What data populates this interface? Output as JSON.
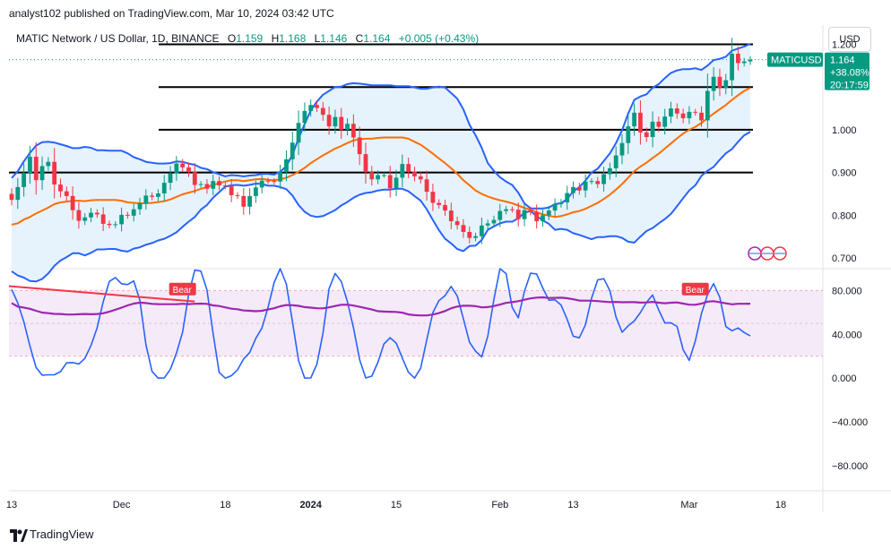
{
  "header": {
    "published": "analyst102 published on TradingView.com, Mar 10, 2024 03:42 UTC"
  },
  "legend": {
    "symbol": "MATIC Network / US Dollar, 1D, BINANCE",
    "o_label": "O",
    "o_value": "1.159",
    "h_label": "H",
    "h_value": "1.168",
    "l_label": "L",
    "l_value": "1.146",
    "c_label": "C",
    "c_value": "1.164",
    "change": "+0.005 (+0.43%)"
  },
  "currency": "USD",
  "price_label": {
    "symbol": "MATICUSD",
    "price": "1.164",
    "change_pct": "+38.08%",
    "countdown": "20:17:59"
  },
  "footer": {
    "brand": "TradingView"
  },
  "colors": {
    "up": "#089981",
    "down": "#f23645",
    "bb_band": "#2962ff",
    "bb_basis": "#ff6d00",
    "bb_fill": "#e3f2fd",
    "stoch_k": "#2962ff",
    "stoch_d": "#9c27b0",
    "stoch_fill": "#f3e5f5",
    "bear": "#f23645"
  },
  "chart_data": [
    {
      "type": "candlestick",
      "pane": "price",
      "y_ticks": [
        "1.200",
        "1.000",
        "0.900",
        "0.800",
        "0.700"
      ],
      "y_tick_values": [
        1.2,
        1.0,
        0.9,
        0.8,
        0.7
      ],
      "y_range": [
        0.675,
        1.245
      ],
      "x_ticks": [
        "13",
        "Dec",
        "18",
        "2024",
        "15",
        "Feb",
        "13",
        "Mar",
        "18"
      ],
      "x_tick_days": [
        0,
        18,
        35,
        49,
        63,
        80,
        92,
        111,
        126
      ],
      "start_date": "2023-11-13",
      "horizontal_levels": [
        1.2,
        1.1,
        1.0,
        0.9
      ],
      "current_price": 1.164,
      "closes": [
        0.836,
        0.866,
        0.899,
        0.937,
        0.882,
        0.915,
        0.925,
        0.872,
        0.856,
        0.845,
        0.812,
        0.787,
        0.795,
        0.806,
        0.802,
        0.78,
        0.777,
        0.779,
        0.801,
        0.799,
        0.814,
        0.828,
        0.846,
        0.843,
        0.851,
        0.876,
        0.898,
        0.921,
        0.912,
        0.901,
        0.871,
        0.873,
        0.862,
        0.88,
        0.87,
        0.868,
        0.847,
        0.845,
        0.82,
        0.845,
        0.865,
        0.881,
        0.88,
        0.879,
        0.901,
        0.931,
        0.97,
        1.016,
        1.044,
        1.058,
        1.051,
        1.035,
        1.008,
        1.03,
        1.0,
        1.014,
        0.982,
        0.943,
        0.901,
        0.884,
        0.894,
        0.894,
        0.863,
        0.888,
        0.92,
        0.902,
        0.891,
        0.884,
        0.855,
        0.829,
        0.824,
        0.811,
        0.786,
        0.777,
        0.761,
        0.747,
        0.751,
        0.776,
        0.781,
        0.789,
        0.81,
        0.814,
        0.813,
        0.791,
        0.812,
        0.808,
        0.786,
        0.8,
        0.811,
        0.826,
        0.83,
        0.852,
        0.866,
        0.858,
        0.879,
        0.88,
        0.873,
        0.896,
        0.91,
        0.94,
        0.969,
        1.008,
        1.04,
        0.994,
        0.983,
        1.019,
        1.007,
        1.031,
        1.05,
        1.038,
        1.027,
        1.042,
        1.04,
        1.022,
        1.091,
        1.124,
        1.098,
        1.116,
        1.178,
        1.156,
        1.16,
        1.164
      ],
      "sma20": [
        0.778,
        0.781,
        0.79,
        0.796,
        0.804,
        0.811,
        0.818,
        0.826,
        0.83,
        0.832,
        0.834,
        0.834,
        0.833,
        0.835,
        0.836,
        0.836,
        0.836,
        0.836,
        0.834,
        0.83,
        0.829,
        0.828,
        0.828,
        0.829,
        0.831,
        0.833,
        0.837,
        0.843,
        0.849,
        0.853,
        0.857,
        0.862,
        0.866,
        0.871,
        0.875,
        0.879,
        0.882,
        0.882,
        0.88,
        0.882,
        0.884,
        0.885,
        0.883,
        0.882,
        0.884,
        0.888,
        0.894,
        0.902,
        0.911,
        0.922,
        0.931,
        0.94,
        0.948,
        0.956,
        0.962,
        0.969,
        0.975,
        0.978,
        0.979,
        0.979,
        0.981,
        0.982,
        0.982,
        0.982,
        0.982,
        0.979,
        0.972,
        0.965,
        0.955,
        0.944,
        0.933,
        0.922,
        0.91,
        0.897,
        0.882,
        0.87,
        0.858,
        0.85,
        0.844,
        0.839,
        0.835,
        0.832,
        0.828,
        0.823,
        0.817,
        0.813,
        0.807,
        0.802,
        0.799,
        0.796,
        0.798,
        0.802,
        0.807,
        0.81,
        0.815,
        0.822,
        0.829,
        0.838,
        0.848,
        0.86,
        0.873,
        0.888,
        0.903,
        0.914,
        0.923,
        0.934,
        0.944,
        0.956,
        0.968,
        0.98,
        0.991,
        1.0,
        1.007,
        1.016,
        1.027,
        1.038,
        1.048,
        1.058,
        1.07,
        1.081,
        1.091,
        1.098
      ],
      "bb_upper": [
        0.887,
        0.903,
        0.926,
        0.946,
        0.963,
        0.971,
        0.972,
        0.97,
        0.966,
        0.962,
        0.957,
        0.957,
        0.96,
        0.958,
        0.952,
        0.952,
        0.951,
        0.951,
        0.951,
        0.945,
        0.936,
        0.931,
        0.925,
        0.923,
        0.921,
        0.921,
        0.922,
        0.926,
        0.925,
        0.921,
        0.918,
        0.911,
        0.908,
        0.901,
        0.896,
        0.891,
        0.894,
        0.893,
        0.891,
        0.893,
        0.894,
        0.897,
        0.897,
        0.895,
        0.902,
        0.915,
        0.942,
        0.98,
        1.014,
        1.045,
        1.066,
        1.082,
        1.091,
        1.1,
        1.101,
        1.107,
        1.109,
        1.108,
        1.106,
        1.104,
        1.104,
        1.104,
        1.104,
        1.102,
        1.102,
        1.102,
        1.099,
        1.096,
        1.096,
        1.099,
        1.101,
        1.099,
        1.086,
        1.073,
        1.048,
        1.012,
        0.987,
        0.958,
        0.922,
        0.904,
        0.889,
        0.879,
        0.871,
        0.853,
        0.828,
        0.816,
        0.816,
        0.816,
        0.818,
        0.826,
        0.828,
        0.838,
        0.856,
        0.866,
        0.881,
        0.9,
        0.909,
        0.927,
        0.945,
        0.969,
        0.999,
        1.038,
        1.07,
        1.078,
        1.083,
        1.098,
        1.107,
        1.121,
        1.133,
        1.139,
        1.142,
        1.142,
        1.144,
        1.14,
        1.15,
        1.163,
        1.166,
        1.171,
        1.185,
        1.19,
        1.195,
        1.201
      ],
      "bb_lower": [
        0.669,
        0.659,
        0.654,
        0.646,
        0.645,
        0.651,
        0.664,
        0.682,
        0.694,
        0.702,
        0.711,
        0.711,
        0.706,
        0.712,
        0.72,
        0.72,
        0.721,
        0.721,
        0.717,
        0.715,
        0.722,
        0.725,
        0.731,
        0.735,
        0.741,
        0.745,
        0.752,
        0.76,
        0.773,
        0.785,
        0.796,
        0.813,
        0.824,
        0.841,
        0.854,
        0.867,
        0.87,
        0.871,
        0.869,
        0.871,
        0.874,
        0.873,
        0.869,
        0.869,
        0.866,
        0.861,
        0.846,
        0.824,
        0.808,
        0.799,
        0.796,
        0.798,
        0.805,
        0.812,
        0.823,
        0.831,
        0.841,
        0.848,
        0.852,
        0.854,
        0.858,
        0.86,
        0.86,
        0.862,
        0.862,
        0.856,
        0.845,
        0.834,
        0.814,
        0.789,
        0.765,
        0.745,
        0.734,
        0.721,
        0.716,
        0.728,
        0.729,
        0.742,
        0.766,
        0.774,
        0.781,
        0.785,
        0.785,
        0.793,
        0.806,
        0.81,
        0.798,
        0.788,
        0.78,
        0.766,
        0.768,
        0.766,
        0.758,
        0.754,
        0.749,
        0.744,
        0.749,
        0.749,
        0.751,
        0.751,
        0.747,
        0.738,
        0.736,
        0.75,
        0.763,
        0.77,
        0.781,
        0.791,
        0.803,
        0.821,
        0.84,
        0.858,
        0.87,
        0.892,
        0.904,
        0.913,
        0.93,
        0.945,
        0.955,
        0.972,
        0.987,
        0.995
      ]
    },
    {
      "type": "line",
      "pane": "stochastic",
      "y_ticks": [
        "80.000",
        "40.000",
        "0.000",
        "−40.000",
        "−80.000"
      ],
      "y_tick_values": [
        80,
        40,
        0,
        -40,
        -80
      ],
      "y_range": [
        -103,
        100
      ],
      "bands": [
        80,
        20
      ],
      "k_line": [
        81.0,
        68.7,
        51.5,
        29.3,
        9.7,
        2.7,
        3.0,
        3.1,
        5.9,
        13.9,
        14.2,
        12.8,
        18.0,
        29.8,
        45.8,
        69.6,
        88.4,
        91.9,
        86.2,
        85.5,
        88.8,
        71.3,
        30.6,
        6.1,
        0.0,
        0.2,
        8.1,
        23.0,
        42.0,
        76.7,
        98.7,
        97.8,
        80.6,
        41.0,
        5.2,
        0.0,
        2.2,
        7.6,
        17.5,
        23.4,
        36.4,
        45.7,
        64.5,
        87.3,
        100.0,
        86.1,
        51.3,
        16.0,
        0.0,
        0.1,
        12.6,
        41.0,
        81.7,
        95.7,
        88.3,
        70.1,
        45.7,
        16.9,
        0.1,
        1.8,
        14.5,
        31.3,
        36.9,
        32.0,
        18.4,
        5.4,
        0.0,
        9.1,
        35.0,
        59.9,
        70.9,
        75.4,
        83.8,
        75.0,
        54.4,
        32.7,
        24.5,
        19.4,
        38.4,
        71.9,
        100.0,
        95.5,
        64.6,
        55.1,
        79.1,
        95.8,
        95.2,
        82.4,
        71.2,
        71.6,
        66.8,
        53.7,
        38.3,
        36.8,
        48.7,
        72.9,
        89.8,
        90.8,
        79.9,
        55.9,
        41.9,
        47.8,
        52.2,
        59.9,
        69.2,
        75.9,
        62.2,
        50.4,
        50.6,
        47.2,
        26.0,
        16.2,
        33.9,
        58.8,
        76.3,
        86.3,
        73.7,
        47.0,
        43.3,
        45.8,
        41.6,
        38.5
      ],
      "d_line": [
        68.6,
        65.4,
        64.5,
        63.3,
        61.5,
        59.9,
        59.3,
        58.7,
        58.6,
        58.1,
        58.1,
        58.3,
        58.6,
        58.3,
        58.6,
        59.2,
        60.7,
        62.5,
        64.4,
        66.4,
        68.1,
        69.0,
        68.6,
        67.8,
        67.6,
        67.5,
        67.5,
        67.5,
        67.9,
        67.6,
        67.9,
        68.1,
        67.8,
        66.4,
        65.9,
        64.6,
        63.4,
        62.9,
        61.8,
        61.5,
        61.1,
        61.5,
        62.7,
        63.8,
        65.6,
        66.8,
        66.6,
        66.0,
        64.9,
        64.4,
        63.8,
        63.7,
        64.6,
        65.9,
        67.0,
        67.1,
        66.3,
        65.1,
        63.9,
        62.7,
        61.1,
        60.8,
        60.6,
        60.5,
        59.8,
        58.2,
        57.5,
        57.3,
        57.3,
        58.1,
        59.4,
        61.3,
        63.8,
        65.4,
        66.1,
        66.1,
        65.8,
        64.6,
        64.9,
        65.9,
        67.2,
        68.7,
        69.5,
        70.3,
        71.6,
        72.8,
        73.6,
        73.8,
        73.2,
        73.3,
        73.5,
        73.0,
        72.0,
        70.9,
        70.8,
        70.7,
        70.4,
        69.9,
        69.5,
        69.6,
        69.3,
        69.4,
        69.4,
        69.0,
        69.1,
        69.6,
        68.9,
        68.4,
        68.9,
        69.1,
        68.1,
        67.1,
        67.0,
        68.1,
        69.9,
        70.3,
        69.4,
        68.3,
        67.4,
        67.9,
        67.9,
        68.0
      ],
      "trend_line": {
        "from": [
          0,
          84
        ],
        "to": [
          30,
          70
        ]
      },
      "signals": [
        {
          "label": "Bear",
          "index": 28,
          "value": 83
        },
        {
          "label": "Bear",
          "index": 112,
          "value": 83
        }
      ]
    }
  ]
}
